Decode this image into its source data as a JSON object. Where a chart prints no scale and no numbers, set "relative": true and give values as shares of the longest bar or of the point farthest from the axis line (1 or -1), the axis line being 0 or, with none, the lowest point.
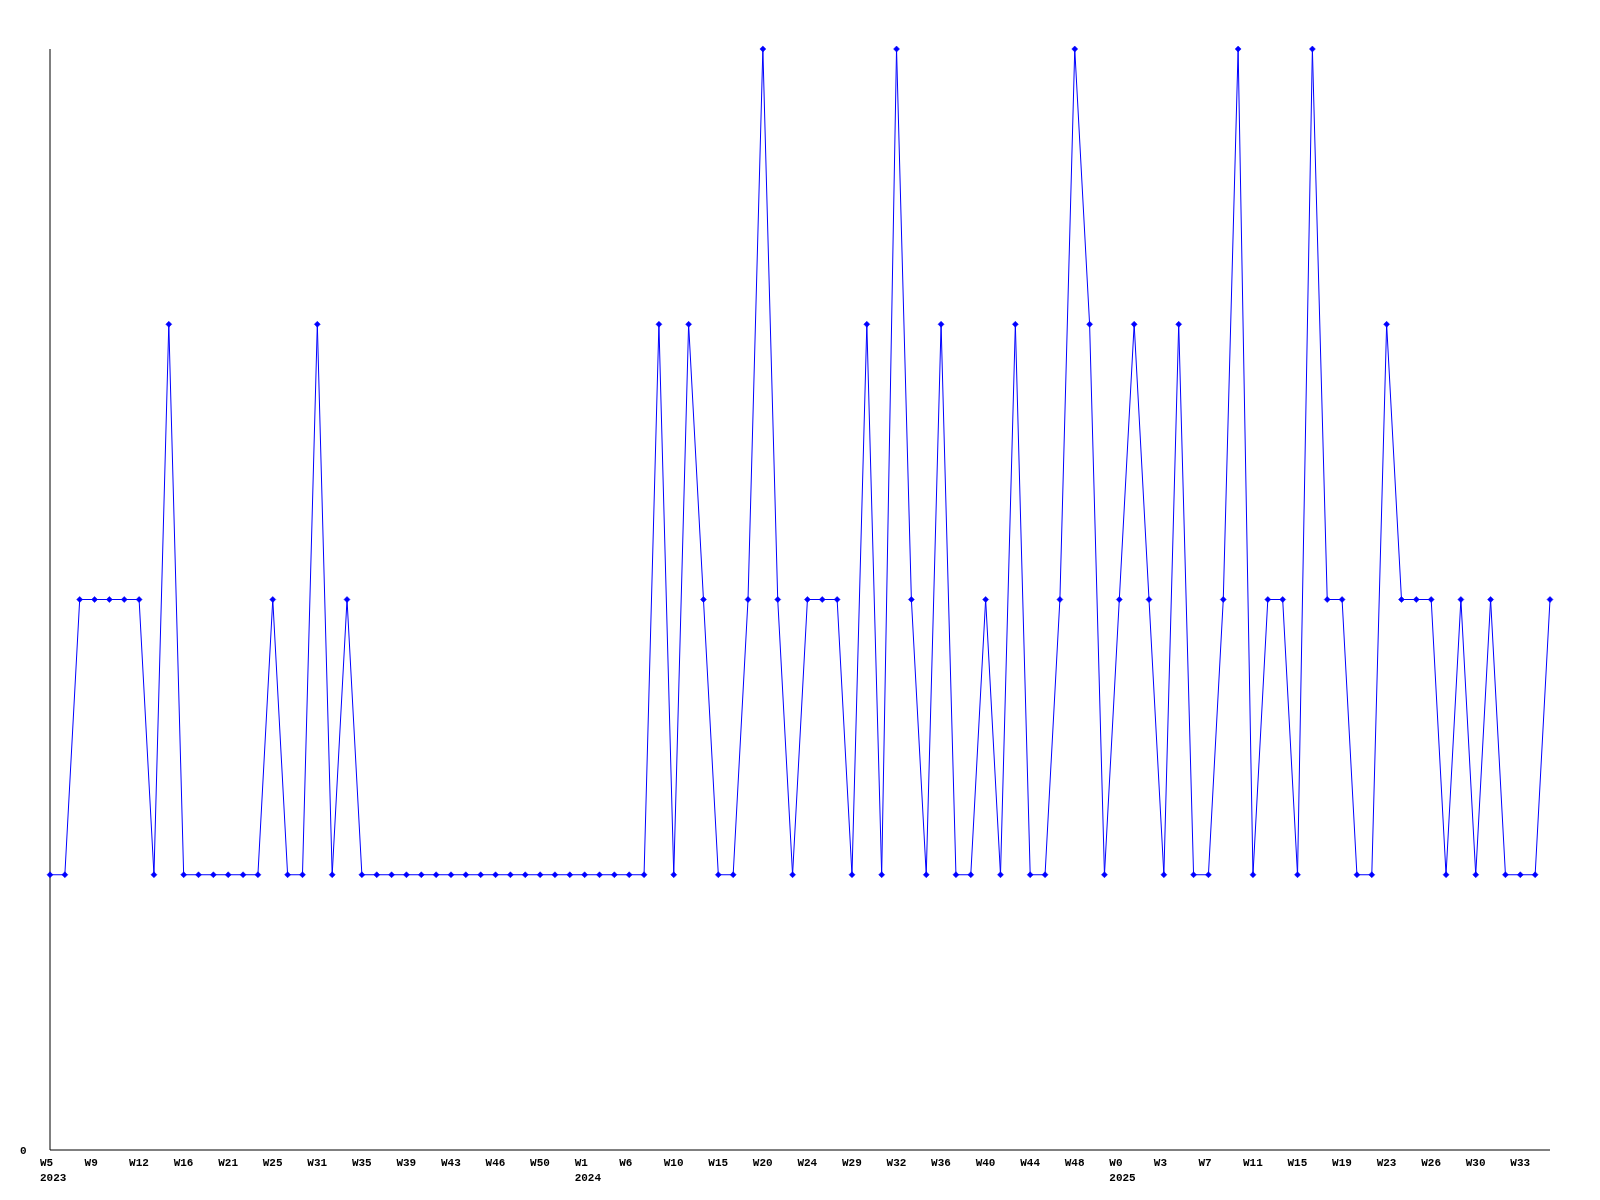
{
  "chart_data": {
    "type": "line",
    "relative": true,
    "marker": "diamond",
    "line_style": "solid",
    "annotations": [
      "0"
    ],
    "categories": [
      "W5\n2023",
      null,
      null,
      "W9",
      null,
      null,
      "W12",
      null,
      null,
      "W16",
      null,
      null,
      "W21",
      null,
      null,
      "W25",
      null,
      null,
      "W31",
      null,
      null,
      "W35",
      null,
      null,
      "W39",
      null,
      null,
      "W43",
      null,
      null,
      "W46",
      null,
      null,
      "W50",
      null,
      null,
      "W1\n2024",
      null,
      null,
      "W6",
      null,
      null,
      "W10",
      null,
      null,
      "W15",
      null,
      null,
      "W20",
      null,
      null,
      "W24",
      null,
      null,
      "W29",
      null,
      null,
      "W32",
      null,
      null,
      "W36",
      null,
      null,
      "W40",
      null,
      null,
      "W44",
      null,
      null,
      "W48",
      null,
      null,
      "W0\n2025",
      null,
      null,
      "W3",
      null,
      null,
      "W7",
      null,
      null,
      "W11",
      null,
      null,
      "W15",
      null,
      null,
      "W19",
      null,
      null,
      "W23",
      null,
      null,
      "W26",
      null,
      null,
      "W30",
      null,
      null,
      "W33",
      null,
      null
    ],
    "series": [
      {
        "color": "#0000ff",
        "values": [
          0.25,
          0.25,
          0.5,
          0.5,
          0.5,
          0.5,
          0.5,
          0.25,
          0.75,
          0.25,
          0.25,
          0.25,
          0.25,
          0.25,
          0.25,
          0.5,
          0.25,
          0.25,
          0.75,
          0.25,
          0.5,
          0.25,
          0.25,
          0.25,
          0.25,
          0.25,
          0.25,
          0.25,
          0.25,
          0.25,
          0.25,
          0.25,
          0.25,
          0.25,
          0.25,
          0.25,
          0.25,
          0.25,
          0.25,
          0.25,
          0.25,
          0.75,
          0.25,
          0.75,
          0.5,
          0.25,
          0.25,
          0.5,
          1,
          0.5,
          0.25,
          0.5,
          0.5,
          0.5,
          0.25,
          0.75,
          0.25,
          1,
          0.5,
          0.25,
          0.75,
          0.25,
          0.25,
          0.5,
          0.25,
          0.75,
          0.25,
          0.25,
          0.5,
          1,
          0.75,
          0.25,
          0.5,
          0.75,
          0.5,
          0.25,
          0.75,
          0.25,
          0.25,
          0.5,
          1,
          0.25,
          0.5,
          0.5,
          0.25,
          1,
          0.5,
          0.5,
          0.25,
          0.25,
          0.75,
          0.5,
          0.5,
          0.5,
          0.25,
          0.5,
          0.25,
          0.5,
          0.25,
          0.25,
          0.25,
          0.5
        ]
      }
    ]
  }
}
